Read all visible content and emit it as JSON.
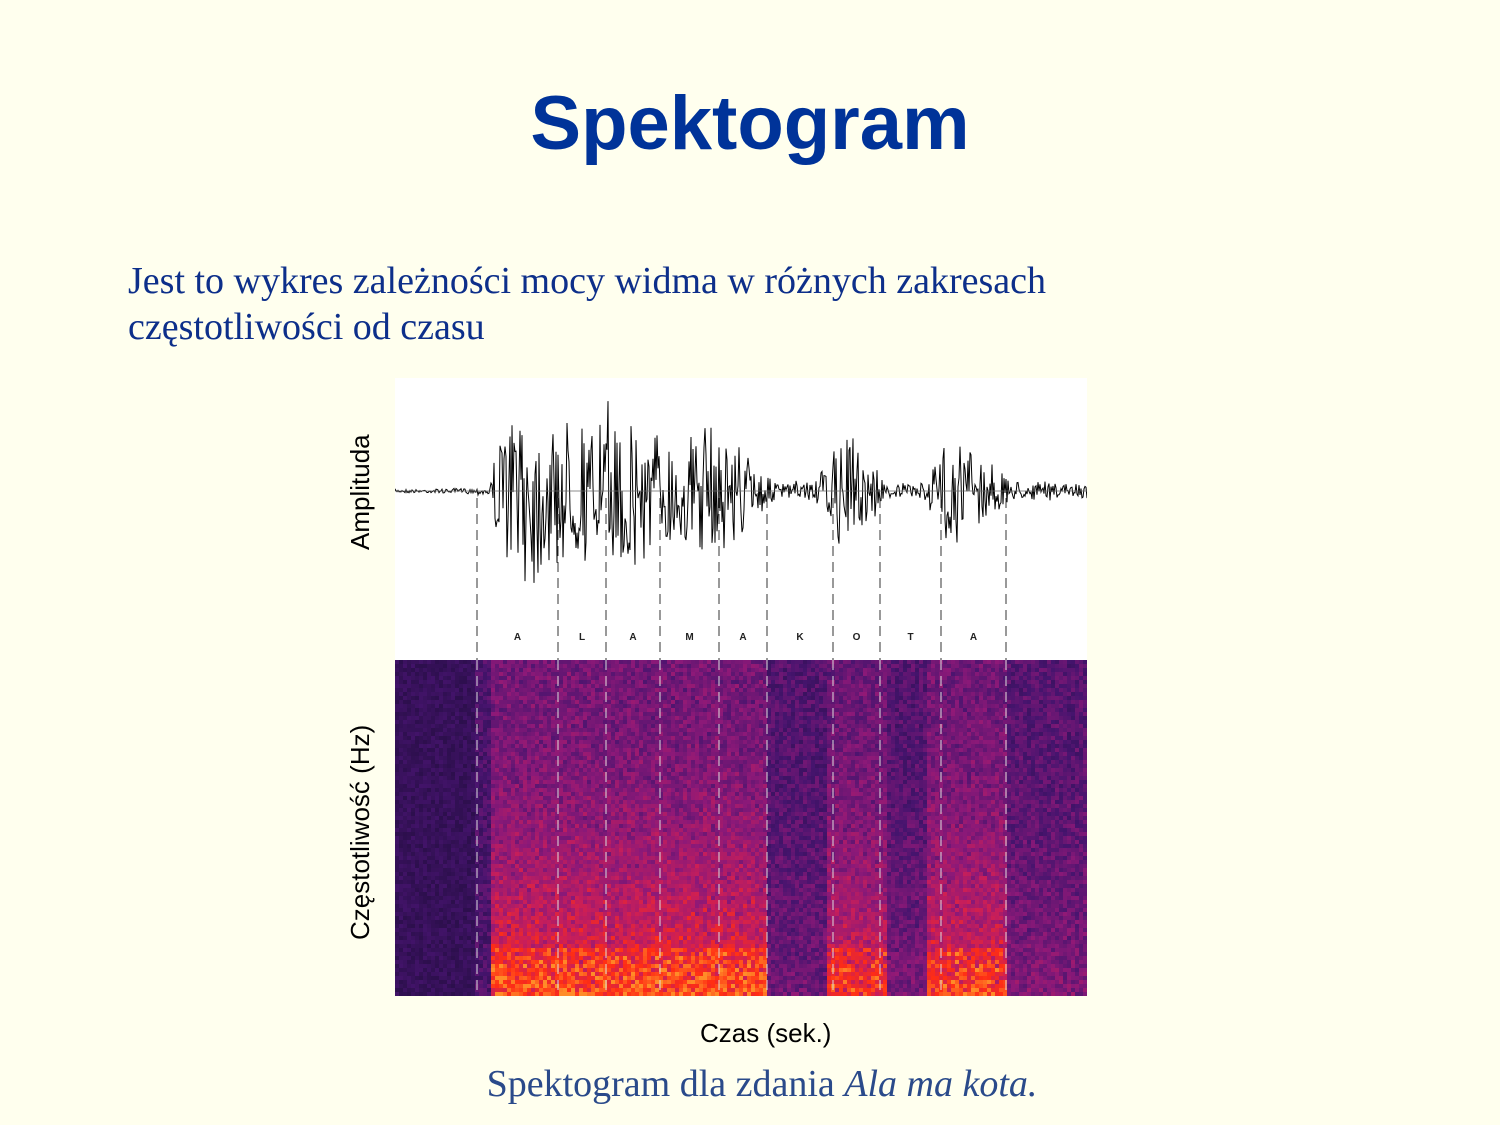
{
  "slide": {
    "title": "Spektogram",
    "body_line1": "Jest to wykres zależności mocy widma w różnych zakresach",
    "body_line2": "częstotliwości od czasu"
  },
  "figure": {
    "ylabel_top": "Amplituda",
    "ylabel_bottom": "Częstotliwość (Hz)",
    "xlabel": "Czas (sek.)",
    "segments": [
      "A",
      "L",
      "A",
      "M",
      "A",
      "K",
      "O",
      "T",
      "A"
    ],
    "colors": {
      "waveform": "#000000",
      "spectrogram_bg": "#1e0c3a",
      "spectrogram_hot": "#ff2a10"
    }
  },
  "caption": {
    "prefix": "Spektogram dla zdania ",
    "sentence": "Ala ma kota."
  }
}
